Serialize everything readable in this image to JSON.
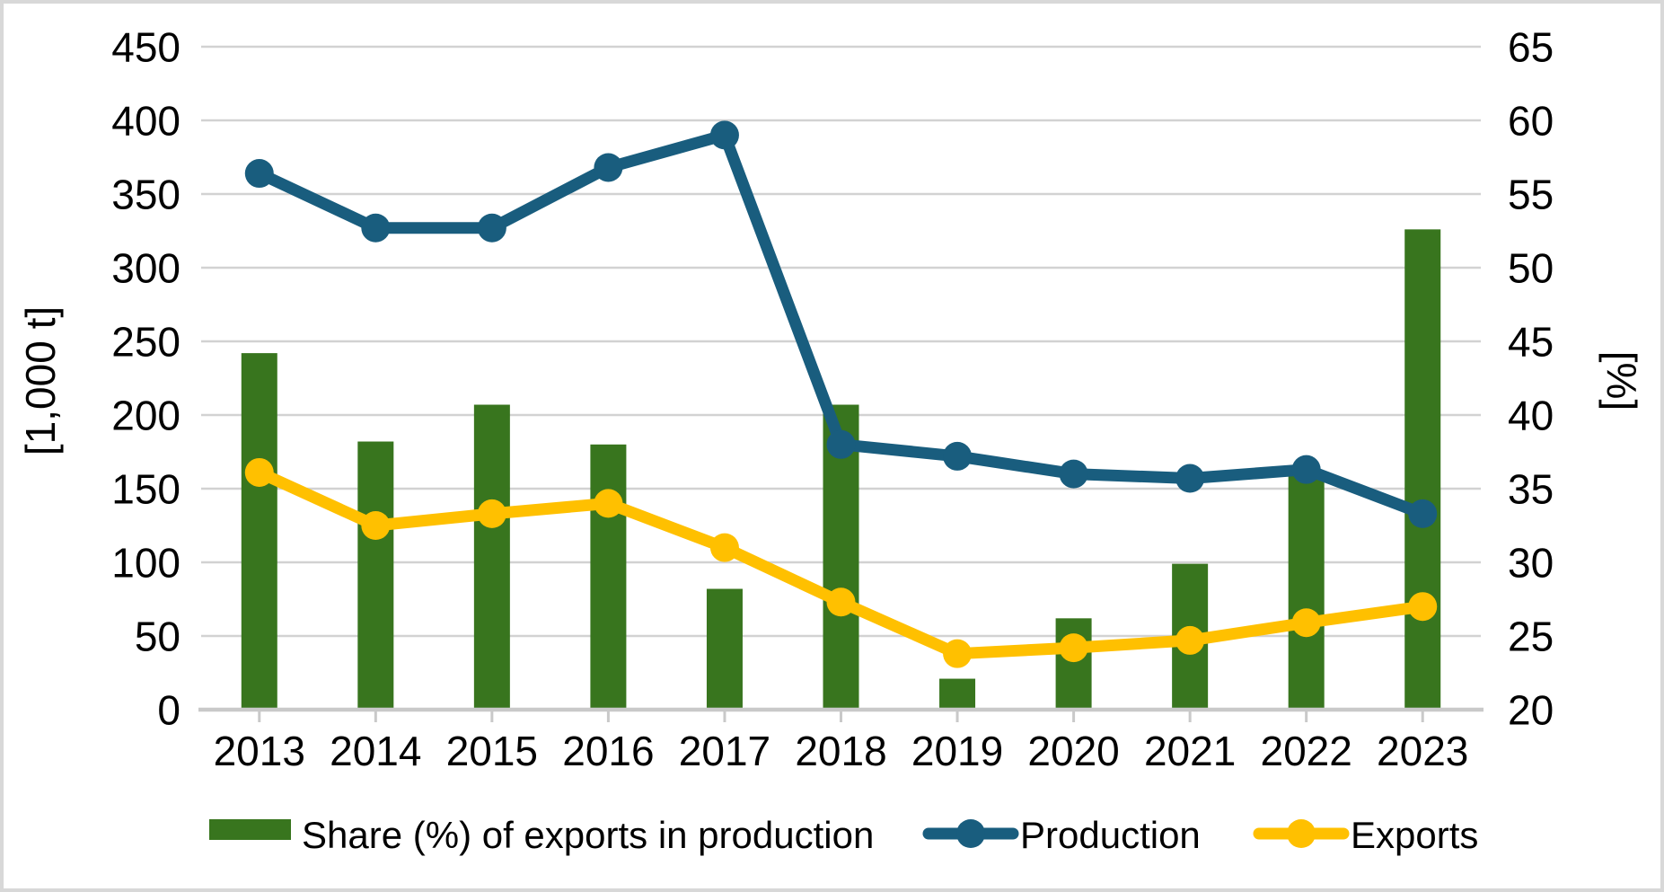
{
  "chart_data": {
    "type": "bar",
    "subtype": "combo-bar-line-dual-axis",
    "title": "",
    "categories": [
      "2013",
      "2014",
      "2015",
      "2016",
      "2017",
      "2018",
      "2019",
      "2020",
      "2021",
      "2022",
      "2023"
    ],
    "series": [
      {
        "name": "Share (%) of exports in production",
        "type": "bar",
        "axis": "right",
        "unit": "%",
        "color": "#38751E",
        "values": [
          44.2,
          38.2,
          40.7,
          38.0,
          28.2,
          40.7,
          22.1,
          26.2,
          29.9,
          36.2,
          52.6
        ]
      },
      {
        "name": "Production",
        "type": "line",
        "axis": "left",
        "unit": "1,000 t",
        "color": "#195D7E",
        "values": [
          364,
          327,
          327,
          368,
          390,
          180,
          172,
          160,
          157,
          163,
          133
        ]
      },
      {
        "name": "Exports",
        "type": "line",
        "axis": "left",
        "unit": "1,000 t",
        "color": "#FFC000",
        "values": [
          161,
          125,
          133,
          140,
          110,
          73,
          38,
          42,
          47,
          59,
          70
        ]
      }
    ],
    "left_axis": {
      "title": "[1,000 t]",
      "min": 0,
      "max": 450,
      "step": 50,
      "tick_labels": [
        "450",
        "400",
        "350",
        "300",
        "250",
        "200",
        "150",
        "100",
        "50",
        "0"
      ]
    },
    "right_axis": {
      "title": "[%]",
      "min": 20,
      "max": 65,
      "step": 5,
      "tick_labels": [
        "65",
        "60",
        "55",
        "50",
        "45",
        "40",
        "35",
        "30",
        "25",
        "20"
      ]
    },
    "x_axis": {
      "tick_labels": [
        "2013",
        "2014",
        "2015",
        "2016",
        "2017",
        "2018",
        "2019",
        "2020",
        "2021",
        "2022",
        "2023"
      ]
    },
    "grid": true,
    "legend_position": "bottom",
    "colors": {
      "gridline": "#D2D2D2",
      "axis_line": "#C9C9C9",
      "text": "#000000",
      "background": "#FFFFFF",
      "border": "#D8D8D8"
    }
  }
}
